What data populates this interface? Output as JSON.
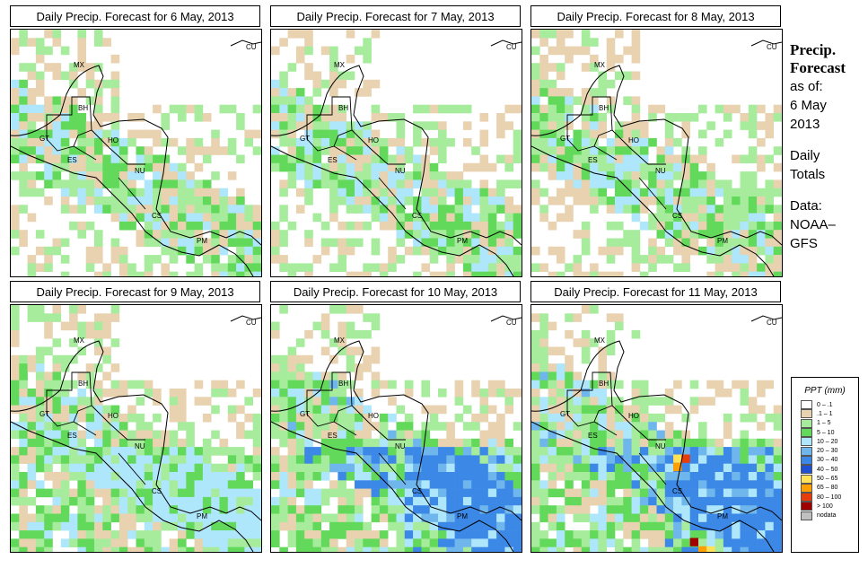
{
  "panels": [
    {
      "title": "Daily Precip. Forecast for  6 May, 2013",
      "day": 6
    },
    {
      "title": "Daily Precip. Forecast for  7 May, 2013",
      "day": 7
    },
    {
      "title": "Daily Precip. Forecast for  8 May, 2013",
      "day": 8
    },
    {
      "title": "Daily Precip. Forecast for  9 May, 2013",
      "day": 9
    },
    {
      "title": "Daily Precip. Forecast for  10 May, 2013",
      "day": 10
    },
    {
      "title": "Daily Precip. Forecast for  11 May, 2013",
      "day": 11
    }
  ],
  "country_labels": [
    "MX",
    "BH",
    "GT",
    "HO",
    "ES",
    "NU",
    "CS",
    "PM",
    "CU"
  ],
  "side": {
    "heading_line1": "Precip.",
    "heading_line2": "Forecast",
    "asof": "as of:",
    "date_line1": "6 May",
    "date_line2": "2013",
    "daily_line1": "Daily",
    "daily_line2": "Totals",
    "data_line1": "Data:",
    "data_line2": "NOAA–",
    "data_line3": "GFS"
  },
  "legend": {
    "title": "PPT (mm)",
    "items": [
      {
        "label": "0 – .1",
        "color": "#ffffff"
      },
      {
        "label": ".1 – 1",
        "color": "#e8d2b0"
      },
      {
        "label": "1 – 5",
        "color": "#a6ec9c"
      },
      {
        "label": "5 – 10",
        "color": "#62d95a"
      },
      {
        "label": "10 – 20",
        "color": "#aee6fb"
      },
      {
        "label": "20 – 30",
        "color": "#6fb6ec"
      },
      {
        "label": "30 – 40",
        "color": "#3c88e6"
      },
      {
        "label": "40 – 50",
        "color": "#1e50d2"
      },
      {
        "label": "50 – 65",
        "color": "#ffe15a"
      },
      {
        "label": "65 – 80",
        "color": "#ffa000"
      },
      {
        "label": "80 – 100",
        "color": "#e83c0a"
      },
      {
        "label": "> 100",
        "color": "#a00000"
      },
      {
        "label": "nodata",
        "color": "#c0c0c0"
      }
    ]
  }
}
